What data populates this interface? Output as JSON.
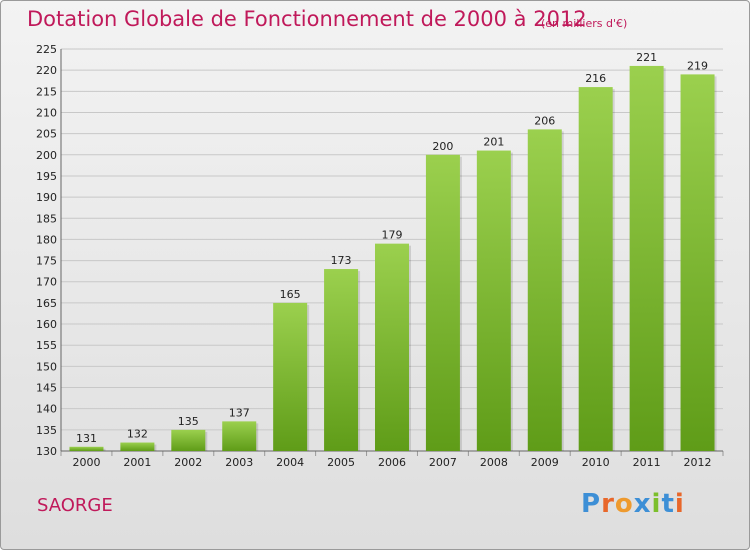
{
  "header": {
    "title": "Dotation Globale de Fonctionnement de 2000 à 2012",
    "subtitle": "(en milliers d'€)"
  },
  "footer": {
    "commune": "SAORGE",
    "logo": "Proxiti"
  },
  "colors": {
    "title": "#c0195a",
    "bar_top": "#9bd04e",
    "bar_bottom": "#5f9c18",
    "logo_letters": [
      "#3d8fd6",
      "#e8672a",
      "#ee9a2e",
      "#3d8fd6",
      "#7cbf2c",
      "#3d8fd6",
      "#e8672a"
    ]
  },
  "chart_data": {
    "type": "bar",
    "categories": [
      "2000",
      "2001",
      "2002",
      "2003",
      "2004",
      "2005",
      "2006",
      "2007",
      "2008",
      "2009",
      "2010",
      "2011",
      "2012"
    ],
    "values": [
      131,
      132,
      135,
      137,
      165,
      173,
      179,
      200,
      201,
      206,
      216,
      221,
      219
    ],
    "ylim": [
      130,
      225
    ],
    "yticks": [
      130,
      135,
      140,
      145,
      150,
      155,
      160,
      165,
      170,
      175,
      180,
      185,
      190,
      195,
      200,
      205,
      210,
      215,
      220,
      225
    ],
    "grid": true,
    "xlabel": "",
    "ylabel": ""
  }
}
